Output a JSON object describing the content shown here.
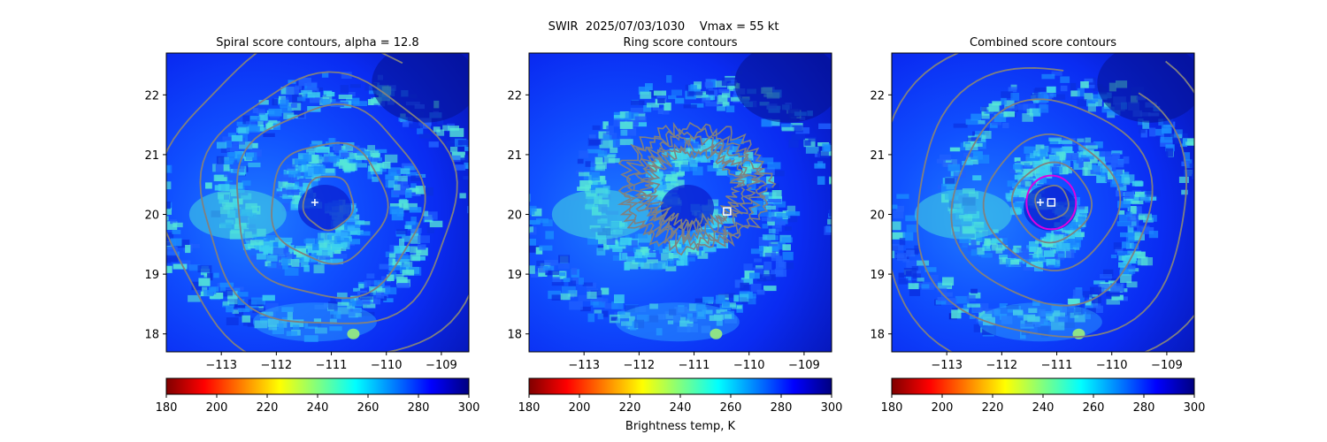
{
  "figure": {
    "suptitle": "SWIR  2025/07/03/1030    Vmax = 55 kt",
    "colorbar_label": "Brightness temp, K"
  },
  "colormap": [
    "#800000",
    "#ff0000",
    "#ff8000",
    "#ffff00",
    "#80ff80",
    "#00ffff",
    "#0080ff",
    "#0000ff",
    "#000080"
  ],
  "colors": {
    "contour": "#808080",
    "marker": "#ffffff",
    "ring": "#e000e0",
    "cold_cloud": "#1a3cff",
    "warm_band": "#2aa6ff"
  },
  "chart_data": [
    {
      "type": "heatmap",
      "title": "Spiral score contours, alpha = 12.8",
      "xlim": [
        -114.0,
        -108.5
      ],
      "ylim": [
        17.7,
        22.7
      ],
      "xticks": [
        -113,
        -112,
        -111,
        -110,
        -109
      ],
      "yticks": [
        18,
        19,
        20,
        21,
        22
      ],
      "colorbar": {
        "range": [
          180,
          300
        ],
        "ticks": [
          180,
          200,
          220,
          240,
          260,
          280,
          300
        ]
      },
      "contours": "spiral",
      "markers": [
        {
          "shape": "plus",
          "lon": -111.3,
          "lat": 20.2
        }
      ]
    },
    {
      "type": "heatmap",
      "title": "Ring score contours",
      "xlim": [
        -114.0,
        -108.5
      ],
      "ylim": [
        17.7,
        22.7
      ],
      "xticks": [
        -113,
        -112,
        -111,
        -110,
        -109
      ],
      "yticks": [
        18,
        19,
        20,
        21,
        22
      ],
      "colorbar": {
        "range": [
          180,
          300
        ],
        "ticks": [
          180,
          200,
          220,
          240,
          260,
          280,
          300
        ]
      },
      "contours": "ring",
      "markers": [
        {
          "shape": "square",
          "lon": -110.4,
          "lat": 20.05
        }
      ]
    },
    {
      "type": "heatmap",
      "title": "Combined score contours",
      "xlim": [
        -114.0,
        -108.5
      ],
      "ylim": [
        17.7,
        22.7
      ],
      "xticks": [
        -113,
        -112,
        -111,
        -110,
        -109
      ],
      "yticks": [
        18,
        19,
        20,
        21,
        22
      ],
      "colorbar": {
        "range": [
          180,
          300
        ],
        "ticks": [
          180,
          200,
          220,
          240,
          260,
          280,
          300
        ]
      },
      "contours": "combined",
      "markers": [
        {
          "shape": "plus",
          "lon": -111.3,
          "lat": 20.2
        },
        {
          "shape": "square",
          "lon": -111.1,
          "lat": 20.2
        }
      ],
      "ring_circle": {
        "lon": -111.1,
        "lat": 20.2,
        "radius_deg": 0.45
      }
    }
  ]
}
